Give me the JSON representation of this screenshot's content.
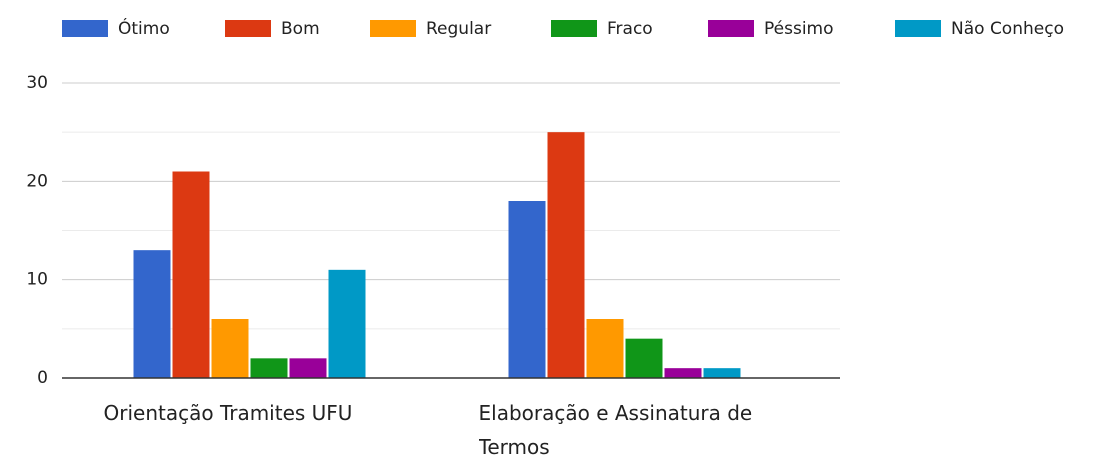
{
  "chart_data": {
    "type": "bar",
    "categories": [
      "Orientação Tramites UFU",
      "Elaboração e Assinatura de Termos"
    ],
    "series": [
      {
        "name": "Ótimo",
        "color": "#3366cc",
        "values": [
          13,
          18
        ]
      },
      {
        "name": "Bom",
        "color": "#dc3912",
        "values": [
          21,
          25
        ]
      },
      {
        "name": "Regular",
        "color": "#ff9900",
        "values": [
          6,
          6
        ]
      },
      {
        "name": "Fraco",
        "color": "#109618",
        "values": [
          2,
          4
        ]
      },
      {
        "name": "Péssimo",
        "color": "#990099",
        "values": [
          2,
          1
        ]
      },
      {
        "name": "Não Conheço",
        "color": "#0099c6",
        "values": [
          11,
          1
        ]
      }
    ],
    "ylim": [
      0,
      30
    ],
    "yticks": [
      0,
      10,
      20,
      30
    ],
    "yminor": [
      5,
      15,
      25
    ],
    "grid": true,
    "legend": "top"
  }
}
